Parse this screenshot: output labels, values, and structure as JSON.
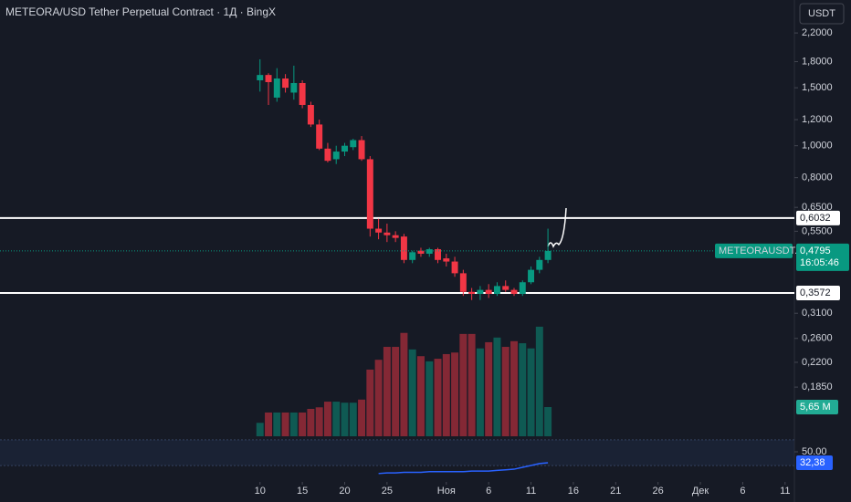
{
  "chart_data": {
    "type": "candlestick",
    "title": "METEORA/USD Tether Perpetual Contract · 1Д · BingX",
    "currency": "USDT",
    "symbol": "METEORAUSDT.P",
    "countdown": "16:05:46",
    "up_color": "#089981",
    "down_color": "#f23645",
    "log_scale": true,
    "grid": false,
    "x": [
      0,
      1,
      2,
      3,
      4,
      5,
      6,
      7,
      8,
      9,
      10,
      11,
      12,
      13,
      14,
      15,
      16,
      17,
      18,
      19,
      20,
      21,
      22,
      23,
      24,
      25,
      26,
      27,
      28,
      29,
      30,
      31,
      32,
      33,
      34
    ],
    "open": [
      1.58,
      1.64,
      1.4,
      1.6,
      1.45,
      1.55,
      1.33,
      1.16,
      0.98,
      0.91,
      0.96,
      0.99,
      1.04,
      0.91,
      0.56,
      0.545,
      0.535,
      0.53,
      0.45,
      0.48,
      0.47,
      0.485,
      0.455,
      0.445,
      0.41,
      0.36,
      0.355,
      0.365,
      0.355,
      0.375,
      0.365,
      0.355,
      0.385,
      0.42,
      0.45
    ],
    "high": [
      1.83,
      1.66,
      1.72,
      1.65,
      1.75,
      1.58,
      1.36,
      1.2,
      1.02,
      1.0,
      1.02,
      1.05,
      1.07,
      0.93,
      0.6,
      0.58,
      0.55,
      0.54,
      0.48,
      0.49,
      0.49,
      0.49,
      0.47,
      0.46,
      0.42,
      0.37,
      0.375,
      0.38,
      0.385,
      0.39,
      0.37,
      0.39,
      0.43,
      0.46,
      0.56
    ],
    "low": [
      1.46,
      1.33,
      1.36,
      1.45,
      1.38,
      1.3,
      1.14,
      0.97,
      0.89,
      0.88,
      0.93,
      0.97,
      0.9,
      0.53,
      0.52,
      0.51,
      0.51,
      0.44,
      0.44,
      0.46,
      0.46,
      0.44,
      0.43,
      0.4,
      0.35,
      0.34,
      0.34,
      0.345,
      0.35,
      0.36,
      0.35,
      0.35,
      0.38,
      0.41,
      0.44
    ],
    "close": [
      1.64,
      1.56,
      1.6,
      1.5,
      1.55,
      1.33,
      1.16,
      0.98,
      0.9,
      0.96,
      1.0,
      1.04,
      0.91,
      0.56,
      0.545,
      0.535,
      0.525,
      0.45,
      0.475,
      0.47,
      0.485,
      0.45,
      0.445,
      0.41,
      0.36,
      0.355,
      0.365,
      0.355,
      0.375,
      0.365,
      0.355,
      0.385,
      0.42,
      0.45,
      0.4795
    ],
    "last_price_label": "0,4795",
    "xlim": [
      -30.7,
      63.1
    ],
    "xticks": [
      {
        "value": 0,
        "label": "10"
      },
      {
        "value": 5,
        "label": "15"
      },
      {
        "value": 10,
        "label": "20"
      },
      {
        "value": 15,
        "label": "25"
      },
      {
        "value": 22,
        "label": "Ноя"
      },
      {
        "value": 27,
        "label": "6"
      },
      {
        "value": 32,
        "label": "11"
      },
      {
        "value": 37,
        "label": "16"
      },
      {
        "value": 42,
        "label": "21"
      },
      {
        "value": 47,
        "label": "26"
      },
      {
        "value": 52,
        "label": "Дек"
      },
      {
        "value": 57,
        "label": "6"
      },
      {
        "value": 62,
        "label": "11"
      }
    ],
    "ylim": [
      0.1295,
      2.77
    ],
    "yticks": [
      {
        "value": 2.2,
        "label": "2,2000"
      },
      {
        "value": 1.8,
        "label": "1,8000"
      },
      {
        "value": 1.5,
        "label": "1,5000"
      },
      {
        "value": 1.2,
        "label": "1,2000"
      },
      {
        "value": 1.0,
        "label": "1,0000"
      },
      {
        "value": 0.8,
        "label": "0,8000"
      },
      {
        "value": 0.65,
        "label": "0,6500"
      },
      {
        "value": 0.55,
        "label": "0,5500"
      },
      {
        "value": 0.31,
        "label": "0,3100"
      },
      {
        "value": 0.26,
        "label": "0,2600"
      },
      {
        "value": 0.22,
        "label": "0,2200"
      },
      {
        "value": 0.185,
        "label": "0,1850"
      }
    ],
    "hlines": [
      {
        "value": 0.6032,
        "label": "0,6032"
      },
      {
        "value": 0.3572,
        "label": "0,3572"
      }
    ],
    "volume": [
      2.6,
      4.6,
      4.6,
      4.6,
      4.6,
      4.6,
      5.3,
      5.6,
      6.7,
      6.7,
      6.5,
      6.5,
      7.1,
      12.9,
      14.8,
      17.3,
      17.3,
      20,
      16.8,
      15.5,
      14.5,
      15,
      15.9,
      16.2,
      19.8,
      19.8,
      17,
      18.2,
      19.1,
      17.3,
      18.4,
      18,
      17,
      21.2,
      5.65
    ],
    "volume_label": "5,65 M",
    "volume_lim": [
      0,
      84.4
    ],
    "rsi": [
      null,
      null,
      null,
      null,
      null,
      null,
      null,
      null,
      null,
      null,
      null,
      null,
      null,
      null,
      15,
      16,
      16,
      17,
      17,
      17,
      18,
      18,
      18,
      18,
      18,
      19,
      19,
      19,
      20,
      21,
      22,
      25,
      28,
      31,
      32.38
    ],
    "rsi_label": "32,38",
    "rsi_color": "#2962ff",
    "rsi_lim": [
      1.5,
      69.1
    ],
    "rsi_ticks": [
      {
        "value": 50,
        "label": "50.00"
      }
    ]
  }
}
